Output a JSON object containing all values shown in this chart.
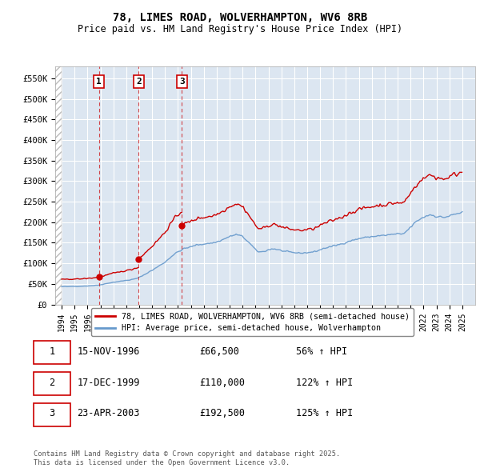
{
  "title_line1": "78, LIMES ROAD, WOLVERHAMPTON, WV6 8RB",
  "title_line2": "Price paid vs. HM Land Registry's House Price Index (HPI)",
  "background_color": "#dce6f1",
  "plot_bg_color": "#dce6f1",
  "grid_color": "#ffffff",
  "ylim": [
    0,
    580000
  ],
  "yticks": [
    0,
    50000,
    100000,
    150000,
    200000,
    250000,
    300000,
    350000,
    400000,
    450000,
    500000,
    550000
  ],
  "ytick_labels": [
    "£0",
    "£50K",
    "£100K",
    "£150K",
    "£200K",
    "£250K",
    "£300K",
    "£350K",
    "£400K",
    "£450K",
    "£500K",
    "£550K"
  ],
  "xmin": 1993.5,
  "xmax": 2026.0,
  "xticks": [
    1994,
    1995,
    1996,
    1997,
    1998,
    1999,
    2000,
    2001,
    2002,
    2003,
    2004,
    2005,
    2006,
    2007,
    2008,
    2009,
    2010,
    2011,
    2012,
    2013,
    2014,
    2015,
    2016,
    2017,
    2018,
    2019,
    2020,
    2021,
    2022,
    2023,
    2024,
    2025
  ],
  "sale_dates": [
    1996.877,
    1999.962,
    2003.308
  ],
  "sale_prices": [
    66500,
    110000,
    192500
  ],
  "sale_labels": [
    "1",
    "2",
    "3"
  ],
  "legend_label_red": "78, LIMES ROAD, WOLVERHAMPTON, WV6 8RB (semi-detached house)",
  "legend_label_blue": "HPI: Average price, semi-detached house, Wolverhampton",
  "table_data": [
    [
      "1",
      "15-NOV-1996",
      "£66,500",
      "56% ↑ HPI"
    ],
    [
      "2",
      "17-DEC-1999",
      "£110,000",
      "122% ↑ HPI"
    ],
    [
      "3",
      "23-APR-2003",
      "£192,500",
      "125% ↑ HPI"
    ]
  ],
  "footer_text": "Contains HM Land Registry data © Crown copyright and database right 2025.\nThis data is licensed under the Open Government Licence v3.0.",
  "red_color": "#cc0000",
  "blue_color": "#6699cc",
  "hpi_base_points": [
    [
      1994.0,
      43000
    ],
    [
      1994.25,
      43500
    ],
    [
      1994.5,
      43200
    ],
    [
      1994.75,
      43800
    ],
    [
      1995.0,
      44000
    ],
    [
      1995.25,
      43800
    ],
    [
      1995.5,
      44200
    ],
    [
      1995.75,
      44500
    ],
    [
      1996.0,
      45000
    ],
    [
      1996.25,
      45500
    ],
    [
      1996.5,
      46000
    ],
    [
      1996.75,
      46800
    ],
    [
      1996.877,
      47200
    ],
    [
      1997.0,
      48000
    ],
    [
      1997.25,
      49500
    ],
    [
      1997.5,
      51000
    ],
    [
      1997.75,
      52500
    ],
    [
      1998.0,
      54000
    ],
    [
      1998.25,
      55000
    ],
    [
      1998.5,
      56000
    ],
    [
      1998.75,
      57500
    ],
    [
      1999.0,
      58500
    ],
    [
      1999.25,
      59500
    ],
    [
      1999.5,
      61000
    ],
    [
      1999.75,
      63000
    ],
    [
      1999.962,
      64500
    ],
    [
      2000.0,
      66000
    ],
    [
      2000.25,
      70000
    ],
    [
      2000.5,
      74000
    ],
    [
      2000.75,
      79000
    ],
    [
      2001.0,
      83000
    ],
    [
      2001.25,
      88000
    ],
    [
      2001.5,
      93000
    ],
    [
      2001.75,
      98000
    ],
    [
      2002.0,
      103000
    ],
    [
      2002.25,
      110000
    ],
    [
      2002.5,
      117000
    ],
    [
      2002.75,
      123000
    ],
    [
      2003.0,
      128000
    ],
    [
      2003.25,
      132000
    ],
    [
      2003.308,
      133500
    ],
    [
      2003.5,
      136000
    ],
    [
      2003.75,
      138000
    ],
    [
      2004.0,
      140000
    ],
    [
      2004.25,
      143000
    ],
    [
      2004.5,
      145000
    ],
    [
      2004.75,
      146000
    ],
    [
      2005.0,
      147000
    ],
    [
      2005.25,
      148000
    ],
    [
      2005.5,
      149000
    ],
    [
      2005.75,
      150000
    ],
    [
      2006.0,
      152000
    ],
    [
      2006.25,
      155000
    ],
    [
      2006.5,
      158000
    ],
    [
      2006.75,
      162000
    ],
    [
      2007.0,
      165000
    ],
    [
      2007.25,
      168000
    ],
    [
      2007.5,
      170000
    ],
    [
      2007.75,
      168000
    ],
    [
      2008.0,
      165000
    ],
    [
      2008.25,
      158000
    ],
    [
      2008.5,
      150000
    ],
    [
      2008.75,
      142000
    ],
    [
      2009.0,
      133000
    ],
    [
      2009.25,
      128000
    ],
    [
      2009.5,
      128000
    ],
    [
      2009.75,
      130000
    ],
    [
      2010.0,
      133000
    ],
    [
      2010.25,
      135000
    ],
    [
      2010.5,
      135000
    ],
    [
      2010.75,
      133000
    ],
    [
      2011.0,
      131000
    ],
    [
      2011.25,
      129000
    ],
    [
      2011.5,
      128000
    ],
    [
      2011.75,
      127000
    ],
    [
      2012.0,
      126000
    ],
    [
      2012.25,
      125500
    ],
    [
      2012.5,
      125000
    ],
    [
      2012.75,
      125500
    ],
    [
      2013.0,
      126000
    ],
    [
      2013.25,
      127000
    ],
    [
      2013.5,
      128000
    ],
    [
      2013.75,
      130000
    ],
    [
      2014.0,
      133000
    ],
    [
      2014.25,
      136000
    ],
    [
      2014.5,
      138000
    ],
    [
      2014.75,
      140000
    ],
    [
      2015.0,
      142000
    ],
    [
      2015.25,
      144000
    ],
    [
      2015.5,
      146000
    ],
    [
      2015.75,
      148000
    ],
    [
      2016.0,
      151000
    ],
    [
      2016.25,
      154000
    ],
    [
      2016.5,
      156000
    ],
    [
      2016.75,
      158000
    ],
    [
      2017.0,
      160000
    ],
    [
      2017.25,
      162000
    ],
    [
      2017.5,
      163000
    ],
    [
      2017.75,
      164000
    ],
    [
      2018.0,
      165000
    ],
    [
      2018.25,
      166000
    ],
    [
      2018.5,
      167000
    ],
    [
      2018.75,
      167500
    ],
    [
      2019.0,
      168000
    ],
    [
      2019.25,
      169000
    ],
    [
      2019.5,
      170000
    ],
    [
      2019.75,
      171000
    ],
    [
      2020.0,
      172000
    ],
    [
      2020.25,
      170000
    ],
    [
      2020.5,
      173000
    ],
    [
      2020.75,
      180000
    ],
    [
      2021.0,
      188000
    ],
    [
      2021.25,
      196000
    ],
    [
      2021.5,
      203000
    ],
    [
      2021.75,
      208000
    ],
    [
      2022.0,
      212000
    ],
    [
      2022.25,
      216000
    ],
    [
      2022.5,
      218000
    ],
    [
      2022.75,
      217000
    ],
    [
      2023.0,
      214000
    ],
    [
      2023.25,
      213000
    ],
    [
      2023.5,
      212000
    ],
    [
      2023.75,
      213000
    ],
    [
      2024.0,
      215000
    ],
    [
      2024.25,
      218000
    ],
    [
      2024.5,
      220000
    ],
    [
      2024.75,
      222000
    ],
    [
      2025.0,
      224000
    ]
  ]
}
